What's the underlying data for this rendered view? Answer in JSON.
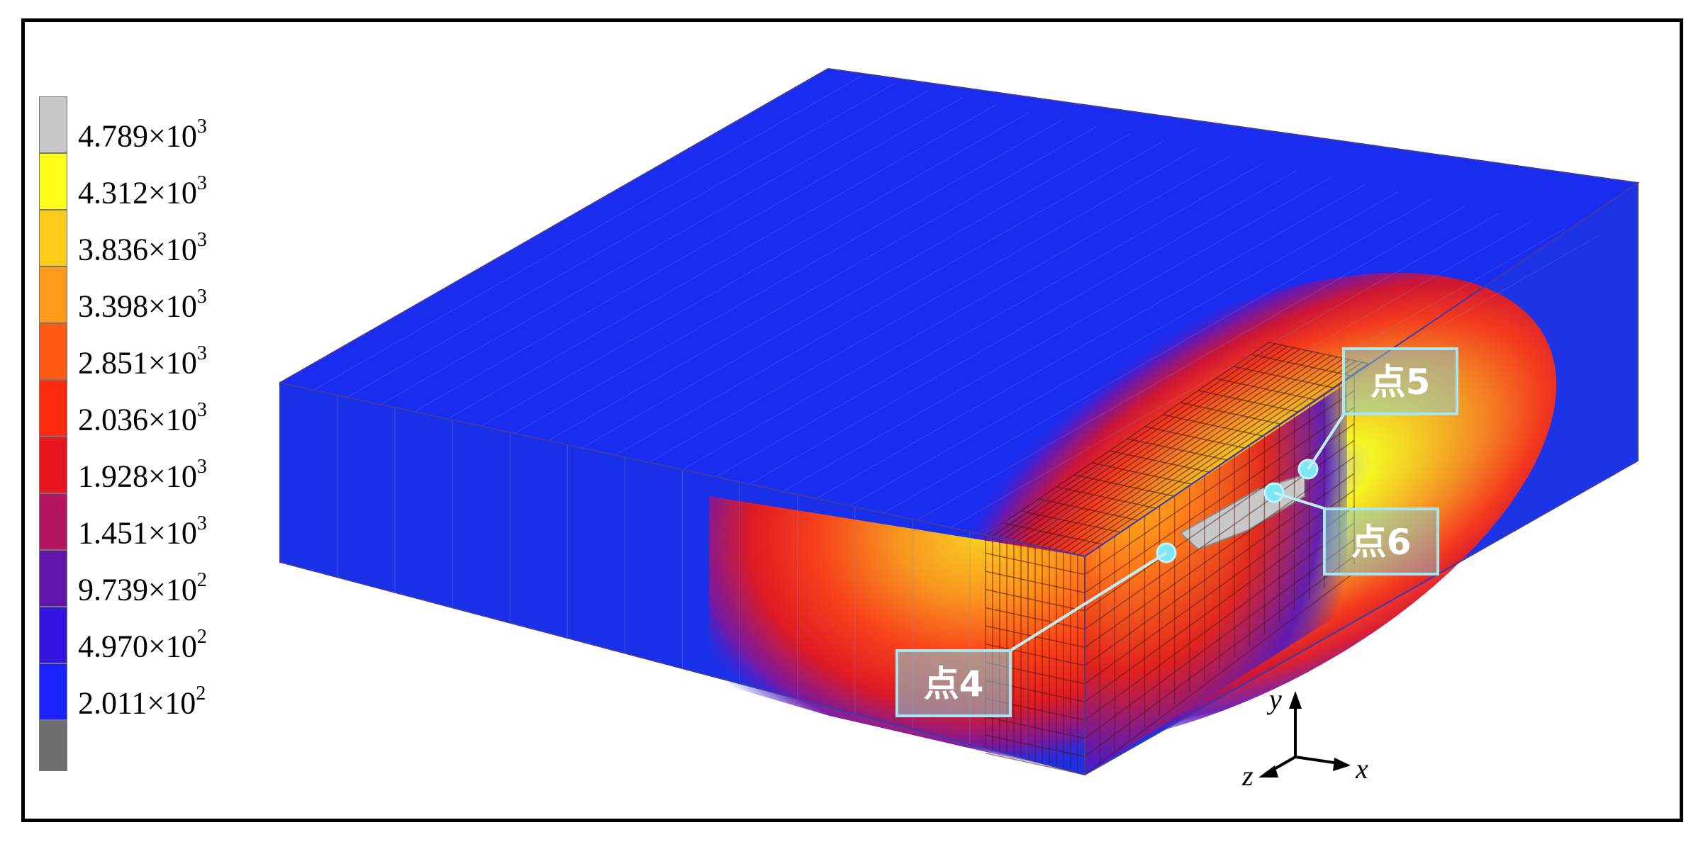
{
  "legend": {
    "levels": [
      {
        "mantissa": "4.789",
        "times": "×",
        "base": "10",
        "exp": "3",
        "color": "#c8c8c8"
      },
      {
        "mantissa": "4.312",
        "times": "×",
        "base": "10",
        "exp": "3",
        "color": "#ffff1a"
      },
      {
        "mantissa": "3.836",
        "times": "×",
        "base": "10",
        "exp": "3",
        "color": "#ffcc1a"
      },
      {
        "mantissa": "3.398",
        "times": "×",
        "base": "10",
        "exp": "3",
        "color": "#ff9a1a"
      },
      {
        "mantissa": "2.851",
        "times": "×",
        "base": "10",
        "exp": "3",
        "color": "#ff5a14"
      },
      {
        "mantissa": "2.036",
        "times": "×",
        "base": "10",
        "exp": "3",
        "color": "#ff2a10"
      },
      {
        "mantissa": "1.928",
        "times": "×",
        "base": "10",
        "exp": "3",
        "color": "#e8141e"
      },
      {
        "mantissa": "1.451",
        "times": "×",
        "base": "10",
        "exp": "3",
        "color": "#b41460"
      },
      {
        "mantissa": "9.739",
        "times": "×",
        "base": "10",
        "exp": "2",
        "color": "#6014a8"
      },
      {
        "mantissa": "4.970",
        "times": "×",
        "base": "10",
        "exp": "2",
        "color": "#3414e0"
      },
      {
        "mantissa": "2.011",
        "times": "×",
        "base": "10",
        "exp": "2",
        "color": "#1a22ff"
      }
    ],
    "bottom_color": "#6e6e6e"
  },
  "points": {
    "p4": "点4",
    "p5": "点5",
    "p6": "点6"
  },
  "axes": {
    "x": "x",
    "y": "y",
    "z": "z"
  },
  "colors": {
    "plate": "#1a2cf0",
    "plate_side": "#1a30e8",
    "callout_border": "#a9e6ee",
    "callout_fill": "#7fd2df",
    "marker": "#7fe6f2"
  }
}
